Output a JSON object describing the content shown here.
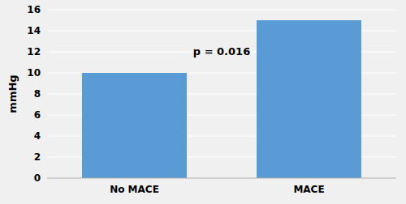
{
  "chart_data": {
    "type": "bar",
    "categories": [
      "No MACE",
      "MACE"
    ],
    "values": [
      10,
      15
    ],
    "color": "#5b9bd5",
    "ylabel": "mmHg",
    "ylim": [
      0,
      16
    ],
    "yticks": [
      0,
      2,
      4,
      6,
      8,
      10,
      12,
      14,
      16
    ],
    "grid": true,
    "annotation": "p = 0.016"
  }
}
